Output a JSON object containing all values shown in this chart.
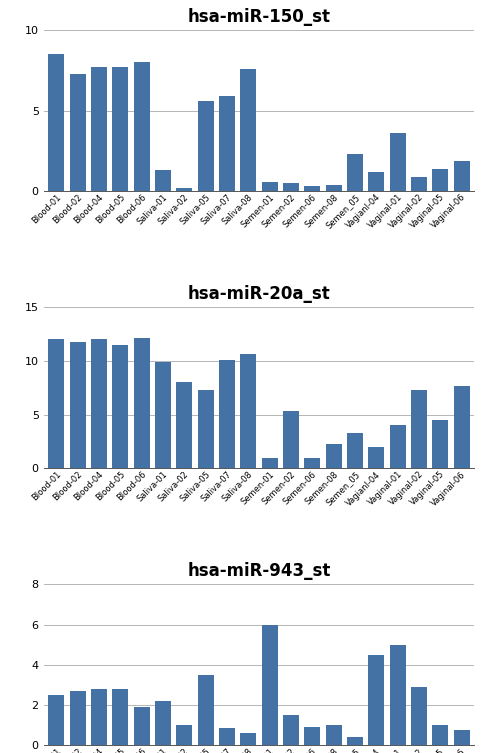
{
  "labels": [
    "Blood-01",
    "Blood-02",
    "Blood-04",
    "Blood-05",
    "Blood-06",
    "Saliva-01",
    "Saliva-02",
    "Saliva-05",
    "Saliva-07",
    "Saliva-08",
    "Semen-01",
    "Semen-02",
    "Semen-06",
    "Semen-08",
    "Semen_05",
    "VagianI-04",
    "Vaginal-01",
    "Vaginal-02",
    "Vaginal-05",
    "Vaginal-06"
  ],
  "chart1": {
    "title": "hsa-miR-150_st",
    "values": [
      8.5,
      7.3,
      7.7,
      7.7,
      8.0,
      1.3,
      0.2,
      5.6,
      5.9,
      7.6,
      0.6,
      0.5,
      0.3,
      0.4,
      2.3,
      1.2,
      3.6,
      0.9,
      1.4,
      1.9
    ],
    "ylim": [
      0,
      10
    ],
    "yticks": [
      0,
      5,
      10
    ]
  },
  "chart2": {
    "title": "hsa-miR-20a_st",
    "values": [
      12.0,
      11.8,
      12.0,
      11.5,
      12.1,
      9.9,
      8.0,
      7.3,
      10.1,
      10.6,
      1.0,
      5.3,
      1.0,
      2.3,
      3.3,
      2.0,
      4.0,
      7.3,
      4.5,
      7.7
    ],
    "ylim": [
      0,
      15
    ],
    "yticks": [
      0,
      5,
      10,
      15
    ]
  },
  "chart3": {
    "title": "hsa-miR-943_st",
    "values": [
      2.5,
      2.7,
      2.8,
      2.8,
      1.9,
      2.2,
      1.0,
      3.5,
      0.85,
      0.6,
      6.0,
      1.5,
      0.9,
      1.0,
      0.4,
      4.5,
      5.0,
      2.9,
      1.0,
      0.75
    ],
    "ylim": [
      0,
      8
    ],
    "yticks": [
      0,
      2,
      4,
      6,
      8
    ]
  },
  "bar_color": "#4472a4",
  "title_fontsize": 12,
  "tick_fontsize": 6.0,
  "ytick_fontsize": 8
}
